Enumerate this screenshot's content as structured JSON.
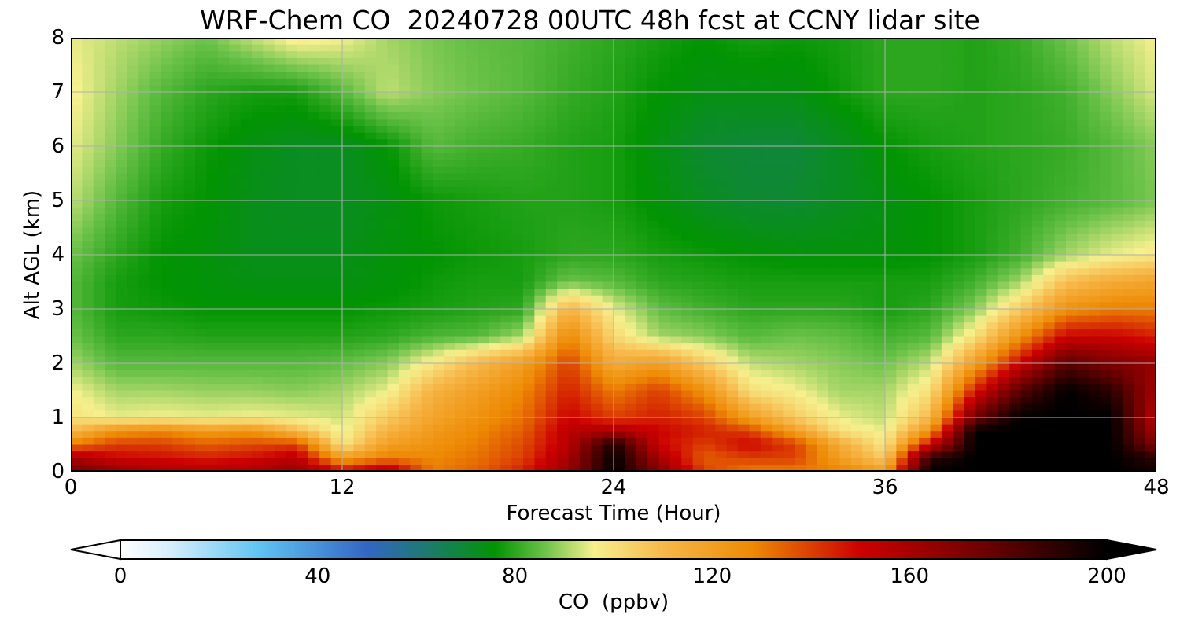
{
  "chart_data": {
    "type": "heatmap",
    "title": "WRF-Chem CO  20240728 00UTC 48h fcst at CCNY lidar site",
    "xlabel": "Forecast Time (Hour)",
    "ylabel": "Alt AGL (km)",
    "xlim": [
      0,
      48
    ],
    "ylim": [
      0,
      8
    ],
    "xticks": [
      "0",
      "12",
      "24",
      "36",
      "48"
    ],
    "yticks": [
      "0",
      "1",
      "2",
      "3",
      "4",
      "5",
      "6",
      "7",
      "8"
    ],
    "grid": true,
    "x_hours": [
      0,
      2,
      4,
      6,
      8,
      10,
      12,
      14,
      16,
      18,
      20,
      22,
      24,
      26,
      28,
      30,
      32,
      34,
      36,
      38,
      40,
      42,
      44,
      46,
      48
    ],
    "altitudes_km": [
      0,
      0.25,
      0.5,
      0.75,
      1,
      1.5,
      2,
      2.5,
      3,
      3.5,
      4,
      5,
      6,
      7,
      8
    ],
    "values_ppbv": [
      [
        175,
        165,
        160,
        158,
        160,
        165,
        150,
        160,
        130,
        135,
        145,
        165,
        200,
        170,
        140,
        130,
        130,
        130,
        120,
        200,
        200,
        200,
        200,
        200,
        195
      ],
      [
        160,
        150,
        148,
        145,
        148,
        155,
        120,
        130,
        128,
        132,
        140,
        160,
        200,
        160,
        135,
        140,
        140,
        120,
        105,
        190,
        200,
        200,
        200,
        200,
        190
      ],
      [
        130,
        140,
        140,
        135,
        138,
        140,
        98,
        120,
        125,
        130,
        138,
        155,
        195,
        150,
        140,
        150,
        140,
        115,
        98,
        150,
        200,
        200,
        200,
        200,
        170
      ],
      [
        110,
        125,
        128,
        122,
        125,
        110,
        95,
        112,
        122,
        128,
        135,
        155,
        160,
        150,
        145,
        140,
        120,
        100,
        95,
        125,
        200,
        200,
        200,
        200,
        160
      ],
      [
        100,
        95,
        96,
        95,
        96,
        95,
        93,
        105,
        118,
        125,
        132,
        150,
        140,
        145,
        140,
        120,
        105,
        95,
        92,
        110,
        175,
        200,
        200,
        200,
        155
      ],
      [
        96,
        90,
        90,
        89,
        89,
        88,
        90,
        95,
        112,
        120,
        128,
        145,
        130,
        140,
        125,
        100,
        96,
        90,
        90,
        100,
        145,
        180,
        200,
        190,
        160
      ],
      [
        90,
        84,
        84,
        84,
        84,
        84,
        85,
        88,
        98,
        110,
        120,
        140,
        115,
        120,
        105,
        92,
        90,
        88,
        86,
        92,
        120,
        150,
        180,
        170,
        165
      ],
      [
        86,
        80,
        80,
        79,
        79,
        79,
        79,
        80,
        83,
        84,
        90,
        128,
        102,
        90,
        88,
        84,
        86,
        85,
        82,
        84,
        100,
        125,
        150,
        150,
        145
      ],
      [
        84,
        78,
        77,
        76,
        76,
        76,
        76,
        77,
        78,
        79,
        80,
        112,
        95,
        85,
        82,
        80,
        80,
        80,
        78,
        80,
        88,
        105,
        125,
        130,
        130
      ],
      [
        84,
        78,
        76,
        75,
        74,
        74,
        74,
        75,
        77,
        78,
        78,
        86,
        84,
        80,
        79,
        78,
        78,
        78,
        78,
        78,
        82,
        90,
        108,
        115,
        118
      ],
      [
        86,
        80,
        76,
        75,
        73,
        73,
        73,
        75,
        76,
        77,
        78,
        80,
        80,
        78,
        77,
        76,
        75,
        75,
        75,
        76,
        78,
        82,
        90,
        95,
        98
      ],
      [
        92,
        84,
        78,
        76,
        73,
        72,
        72,
        74,
        77,
        78,
        79,
        79,
        78,
        75,
        72,
        70,
        70,
        72,
        74,
        76,
        78,
        80,
        82,
        84,
        87
      ],
      [
        95,
        88,
        81,
        77,
        74,
        72,
        72,
        76,
        84,
        82,
        81,
        79,
        78,
        74,
        70,
        69,
        69,
        72,
        76,
        78,
        79,
        80,
        81,
        84,
        88
      ],
      [
        97,
        90,
        84,
        80,
        78,
        78,
        84,
        92,
        88,
        86,
        84,
        81,
        79,
        76,
        74,
        74,
        74,
        77,
        80,
        80,
        79,
        80,
        82,
        88,
        94
      ],
      [
        95,
        92,
        89,
        86,
        92,
        98,
        96,
        90,
        87,
        85,
        84,
        82,
        80,
        78,
        76,
        78,
        77,
        78,
        80,
        80,
        79,
        81,
        86,
        92,
        96
      ]
    ],
    "colorbar": {
      "label": "CO  (ppbv)",
      "min": 0,
      "max": 200,
      "extend": "both",
      "ticks": [
        "0",
        "40",
        "80",
        "120",
        "160",
        "200"
      ],
      "stops": [
        {
          "v": 0,
          "c": "#ffffff"
        },
        {
          "v": 10,
          "c": "#d6eefb"
        },
        {
          "v": 28,
          "c": "#60c4f2"
        },
        {
          "v": 50,
          "c": "#3366c4"
        },
        {
          "v": 62,
          "c": "#1d7a70"
        },
        {
          "v": 76,
          "c": "#029402"
        },
        {
          "v": 86,
          "c": "#6cc24a"
        },
        {
          "v": 96,
          "c": "#f6f08e"
        },
        {
          "v": 110,
          "c": "#f7b84a"
        },
        {
          "v": 128,
          "c": "#ee8a04"
        },
        {
          "v": 150,
          "c": "#cc0000"
        },
        {
          "v": 175,
          "c": "#6e0000"
        },
        {
          "v": 200,
          "c": "#000000"
        }
      ]
    }
  }
}
